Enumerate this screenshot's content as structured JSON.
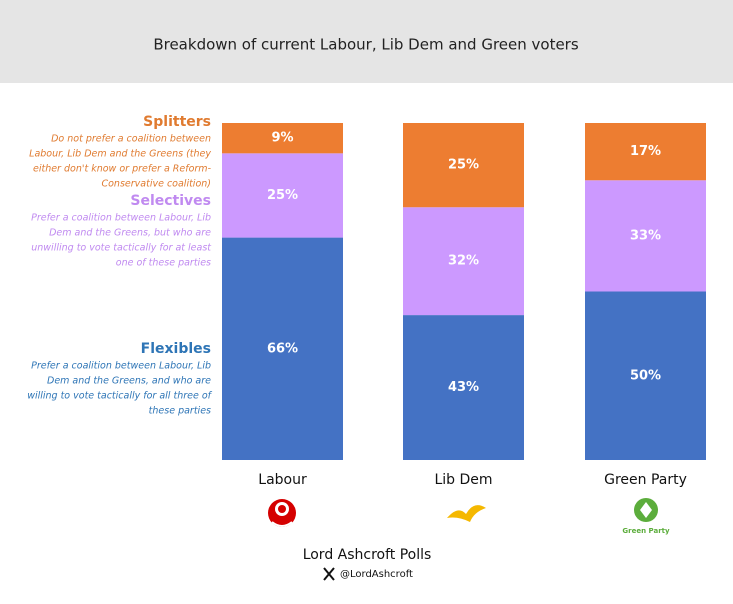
{
  "chart_data": {
    "type": "stacked_bar",
    "title": "Breakdown of current Labour, Lib Dem and Green voters",
    "categories": [
      "Labour",
      "Lib Dem",
      "Green Party"
    ],
    "ylim": [
      0,
      100
    ],
    "series": [
      {
        "name": "Flexibles",
        "color": "#4472c4",
        "text_color": "#2e75b6",
        "description": [
          "Prefer a coalition between Labour, Lib",
          "Dem and the Greens, and who are",
          "willing to vote tactically for all three of",
          "these parties"
        ],
        "values": [
          66,
          43,
          50
        ],
        "value_labels": [
          "66%",
          "43%",
          "50%"
        ]
      },
      {
        "name": "Selectives",
        "color": "#cc99ff",
        "text_color": "#c08af0",
        "description": [
          "Prefer a coalition between Labour, Lib",
          "Dem and the Greens, but who are",
          "unwilling to vote tactically for at least",
          "one of these parties"
        ],
        "values": [
          25,
          32,
          33
        ],
        "value_labels": [
          "25%",
          "32%",
          "33%"
        ]
      },
      {
        "name": "Splitters",
        "color": "#ed7d31",
        "text_color": "#e07b30",
        "description": [
          "Do not prefer a coalition between",
          "Labour, Lib Dem and the Greens (they",
          "either don't know or prefer a Reform-",
          "Conservative coalition)"
        ],
        "values": [
          9,
          25,
          17
        ],
        "value_labels": [
          "9%",
          "25%",
          "17%"
        ]
      }
    ],
    "green_logo_text": "Green Party",
    "source": "Lord Ashcroft Polls",
    "handle": "@LordAshcroft"
  }
}
